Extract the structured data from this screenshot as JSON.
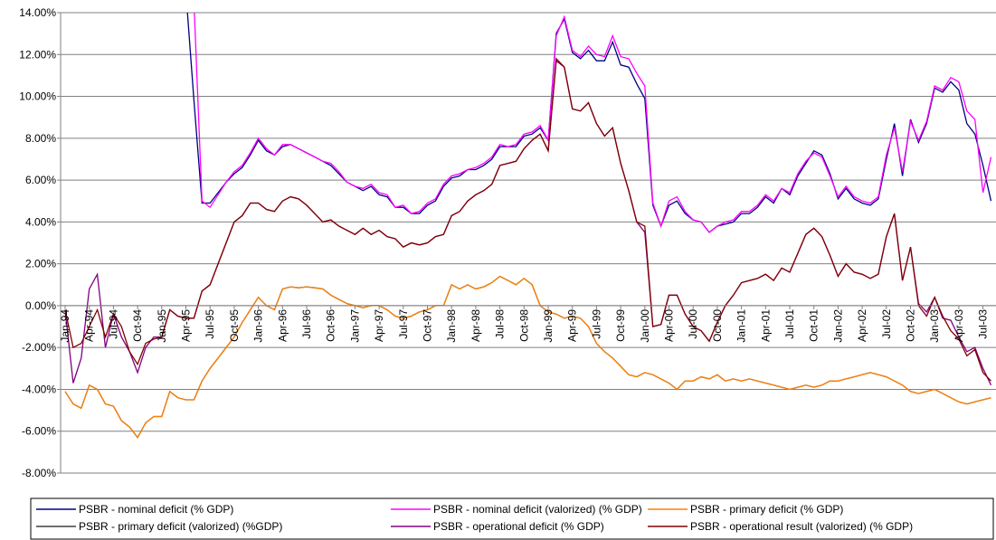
{
  "chart_data": {
    "type": "line",
    "categories": [
      "Jan-94",
      null,
      null,
      "Apr-94",
      null,
      null,
      "Jul-94",
      null,
      null,
      "Oct-94",
      null,
      null,
      "Jan-95",
      null,
      null,
      "Apr-95",
      null,
      null,
      "Jul-95",
      null,
      null,
      "Oct-95",
      null,
      null,
      "Jan-96",
      null,
      null,
      "Apr-96",
      null,
      null,
      "Jul-96",
      null,
      null,
      "Oct-96",
      null,
      null,
      "Jan-97",
      null,
      null,
      "Apr-97",
      null,
      null,
      "Jul-97",
      null,
      null,
      "Oct-97",
      null,
      null,
      "Jan-98",
      null,
      null,
      "Apr-98",
      null,
      null,
      "Jul-98",
      null,
      null,
      "Oct-98",
      null,
      null,
      "Jan-99",
      null,
      null,
      "Apr-99",
      null,
      null,
      "Jul-99",
      null,
      null,
      "Oct-99",
      null,
      null,
      "Jan-00",
      null,
      null,
      "Apr-00",
      null,
      null,
      "Jul-00",
      null,
      null,
      "Oct-00",
      null,
      null,
      "Jan-01",
      null,
      null,
      "Apr-01",
      null,
      null,
      "Jul-01",
      null,
      null,
      "Oct-01",
      null,
      null,
      "Jan-02",
      null,
      null,
      "Apr-02",
      null,
      null,
      "Jul-02",
      null,
      null,
      "Oct-02",
      null,
      null,
      "Jan-03",
      null,
      null,
      "Apr-03",
      null,
      null,
      "Jul-03",
      null
    ],
    "ylim": [
      -8,
      14
    ],
    "yticks": [
      {
        "value": -8,
        "label": "-8.00%"
      },
      {
        "value": -6,
        "label": "-6.00%"
      },
      {
        "value": -4,
        "label": "-4.00%"
      },
      {
        "value": -2,
        "label": "-2.00%"
      },
      {
        "value": 0,
        "label": "0.00%"
      },
      {
        "value": 2,
        "label": "2.00%"
      },
      {
        "value": 4,
        "label": "4.00%"
      },
      {
        "value": 6,
        "label": "6.00%"
      },
      {
        "value": 8,
        "label": "8.00%"
      },
      {
        "value": 10,
        "label": "10.00%"
      },
      {
        "value": 12,
        "label": "12.00%"
      },
      {
        "value": 14,
        "label": "14.00%"
      }
    ],
    "grid": true,
    "series": [
      {
        "name": "PSBR - nominal deficit (% GDP)",
        "color": "#000080",
        "values": [
          null,
          null,
          null,
          null,
          null,
          null,
          null,
          null,
          null,
          null,
          null,
          null,
          null,
          null,
          null,
          15,
          9.8,
          4.9,
          4.9,
          5.4,
          5.9,
          6.3,
          6.6,
          7.2,
          7.9,
          7.4,
          7.2,
          7.6,
          7.7,
          7.5,
          7.3,
          7.1,
          6.9,
          6.7,
          6.3,
          5.9,
          5.7,
          5.5,
          5.7,
          5.3,
          5.2,
          4.7,
          4.7,
          4.4,
          4.4,
          4.8,
          5.0,
          5.7,
          6.1,
          6.2,
          6.5,
          6.5,
          6.7,
          7.0,
          7.6,
          7.6,
          7.6,
          8.1,
          8.2,
          8.5,
          7.9,
          13.0,
          13.7,
          12.1,
          11.8,
          12.2,
          11.7,
          11.7,
          12.6,
          11.5,
          11.4,
          10.6,
          9.9,
          4.8,
          3.8,
          4.8,
          5.0,
          4.4,
          4.1,
          4.0,
          3.5,
          3.8,
          3.9,
          4.0,
          4.4,
          4.4,
          4.7,
          5.2,
          4.9,
          5.6,
          5.3,
          6.2,
          6.8,
          7.4,
          7.2,
          6.3,
          5.1,
          5.6,
          5.1,
          4.9,
          4.8,
          5.1,
          7.0,
          8.7,
          6.2,
          8.9,
          7.8,
          8.7,
          10.4,
          10.2,
          10.7,
          10.3,
          8.7,
          8.2,
          6.7,
          5.0
        ]
      },
      {
        "name": "PSBR - nominal deficit (valorized) (% GDP)",
        "color": "#ff00ff",
        "values": [
          null,
          null,
          null,
          null,
          null,
          null,
          null,
          null,
          null,
          null,
          null,
          null,
          null,
          null,
          null,
          null,
          14.5,
          5.0,
          4.7,
          5.3,
          5.9,
          6.4,
          6.7,
          7.3,
          8.0,
          7.5,
          7.2,
          7.7,
          7.7,
          7.5,
          7.3,
          7.1,
          6.9,
          6.8,
          6.4,
          5.9,
          5.7,
          5.6,
          5.8,
          5.4,
          5.3,
          4.7,
          4.8,
          4.4,
          4.5,
          4.9,
          5.1,
          5.8,
          6.2,
          6.3,
          6.5,
          6.6,
          6.8,
          7.1,
          7.7,
          7.6,
          7.7,
          8.2,
          8.3,
          8.6,
          7.9,
          12.9,
          13.8,
          12.2,
          11.9,
          12.4,
          12.0,
          11.9,
          12.9,
          11.9,
          11.8,
          11.1,
          10.5,
          4.9,
          3.8,
          5.0,
          5.2,
          4.5,
          4.1,
          4.0,
          3.5,
          3.8,
          4.0,
          4.1,
          4.5,
          4.5,
          4.8,
          5.3,
          5.0,
          5.6,
          5.4,
          6.3,
          6.9,
          7.3,
          7.1,
          6.2,
          5.2,
          5.7,
          5.2,
          5.0,
          4.9,
          5.2,
          7.2,
          8.5,
          6.4,
          8.8,
          7.9,
          8.8,
          10.5,
          10.3,
          10.9,
          10.7,
          9.3,
          8.9,
          5.4,
          7.1
        ]
      },
      {
        "name": "PSBR - primary deficit (% GDP)",
        "color": "#ff8000",
        "values": [
          -4.1,
          -4.7,
          -4.9,
          -3.8,
          -4.0,
          -4.7,
          -4.8,
          -5.5,
          -5.8,
          -6.3,
          -5.6,
          -5.3,
          -5.3,
          -4.1,
          -4.4,
          -4.5,
          -4.5,
          -3.6,
          -3.0,
          -2.5,
          -2.0,
          -1.5,
          -0.8,
          -0.2,
          0.4,
          0.0,
          -0.2,
          0.8,
          0.9,
          0.85,
          0.9,
          0.85,
          0.8,
          0.5,
          0.3,
          0.1,
          0.0,
          -0.1,
          0.0,
          0.0,
          -0.2,
          -0.5,
          -0.6,
          -0.5,
          -0.3,
          -0.2,
          0.0,
          0.0,
          1.0,
          0.8,
          1.0,
          0.8,
          0.9,
          1.1,
          1.4,
          1.2,
          1.0,
          1.3,
          1.0,
          0.0,
          -0.3,
          -0.4,
          -0.6,
          -0.5,
          -0.6,
          -1.0,
          -1.8,
          -2.2,
          -2.5,
          -2.9,
          -3.3,
          -3.4,
          -3.2,
          -3.3,
          -3.5,
          -3.7,
          -4.0,
          -3.6,
          -3.6,
          -3.4,
          -3.5,
          -3.3,
          -3.6,
          -3.5,
          -3.6,
          -3.5,
          -3.6,
          -3.7,
          -3.8,
          -3.9,
          -4.0,
          -3.9,
          -3.8,
          -3.9,
          -3.8,
          -3.6,
          -3.6,
          -3.5,
          -3.4,
          -3.3,
          -3.2,
          -3.3,
          -3.4,
          -3.6,
          -3.8,
          -4.1,
          -4.2,
          -4.1,
          -4.0,
          -4.2,
          -4.4,
          -4.6,
          -4.7,
          -4.6,
          -4.5,
          -4.4
        ]
      },
      {
        "name": "PSBR - primary deficit (valorized) (%GDP)",
        "color": "#404040",
        "values": [
          -4.1,
          -4.7,
          -4.9,
          -3.8,
          -4.0,
          -4.7,
          -4.8,
          -5.5,
          -5.8,
          -6.3,
          -5.6,
          -5.3,
          -5.3,
          -4.1,
          -4.4,
          -4.5,
          -4.5,
          -3.6,
          -3.0,
          -2.5,
          -2.0,
          -1.5,
          -0.8,
          -0.2,
          0.4,
          0.0,
          -0.2,
          0.8,
          0.9,
          0.85,
          0.9,
          0.85,
          0.8,
          0.5,
          0.3,
          0.1,
          0.0,
          -0.1,
          0.0,
          0.0,
          -0.2,
          -0.5,
          -0.6,
          -0.5,
          -0.3,
          -0.2,
          0.0,
          0.0,
          1.0,
          0.8,
          1.0,
          0.8,
          0.9,
          1.1,
          1.4,
          1.2,
          1.0,
          1.3,
          1.0,
          0.0,
          -0.3,
          -0.4,
          -0.6,
          -0.5,
          -0.6,
          -1.0,
          -1.8,
          -2.2,
          -2.5,
          -2.9,
          -3.3,
          -3.4,
          -3.2,
          -3.3,
          -3.5,
          -3.7,
          -4.0,
          -3.6,
          -3.6,
          -3.4,
          -3.5,
          -3.3,
          -3.6,
          -3.5,
          -3.6,
          -3.5,
          -3.6,
          -3.7,
          -3.8,
          -3.9,
          -4.0,
          -3.9,
          -3.8,
          -3.9,
          -3.8,
          -3.6,
          -3.6,
          -3.5,
          -3.4,
          -3.3,
          -3.2,
          -3.3,
          -3.4,
          -3.6,
          -3.8,
          -4.1,
          -4.2,
          -4.1,
          -4.0,
          -4.2,
          -4.4,
          -4.6,
          -4.7,
          -4.6,
          -4.5,
          -4.4
        ]
      },
      {
        "name": "PSBR - operational deficit (% GDP)",
        "color": "#800080",
        "values": [
          -0.2,
          -3.7,
          -2.5,
          0.8,
          1.5,
          -2.0,
          -0.4,
          -1.5,
          -2.2,
          -3.2,
          -2.0,
          -1.5,
          -1.5,
          -0.2,
          -0.5,
          -0.6,
          -0.6,
          0.7,
          1.0,
          2.0,
          3.0,
          4.0,
          4.3,
          4.9,
          4.9,
          4.6,
          4.5,
          5.0,
          5.2,
          5.1,
          4.8,
          4.4,
          4.0,
          4.1,
          3.8,
          3.6,
          3.4,
          3.7,
          3.4,
          3.6,
          3.3,
          3.2,
          2.8,
          3.0,
          2.9,
          3.0,
          3.3,
          3.4,
          4.3,
          4.5,
          5.0,
          5.3,
          5.5,
          5.8,
          6.7,
          6.8,
          6.9,
          7.5,
          7.9,
          8.2,
          7.4,
          11.7,
          11.4,
          9.4,
          9.3,
          9.7,
          8.7,
          8.1,
          8.5,
          6.8,
          5.5,
          4.0,
          3.5,
          -1.0,
          -0.9,
          0.5,
          0.5,
          -0.4,
          -1.0,
          -1.2,
          -1.7,
          -0.8,
          0.0,
          0.5,
          1.1,
          1.2,
          1.3,
          1.5,
          1.2,
          1.8,
          1.6,
          2.5,
          3.4,
          3.7,
          3.3,
          2.4,
          1.4,
          2.0,
          1.6,
          1.5,
          1.3,
          1.5,
          3.3,
          4.4,
          1.2,
          2.8,
          0.1,
          -0.3,
          0.4,
          -0.6,
          -0.7,
          -1.5,
          -2.2,
          -2.0,
          -3.0,
          -3.8
        ]
      },
      {
        "name": "PSBR - operational result (valorized) (% GDP)",
        "color": "#800000",
        "values": [
          -0.2,
          -2.0,
          -1.8,
          -1.0,
          -0.2,
          -1.5,
          -0.4,
          -1.0,
          -2.2,
          -2.8,
          -1.8,
          -1.6,
          -1.5,
          -0.2,
          -0.5,
          -0.6,
          -0.6,
          0.7,
          1.0,
          2.0,
          3.0,
          4.0,
          4.3,
          4.9,
          4.9,
          4.6,
          4.5,
          5.0,
          5.2,
          5.1,
          4.8,
          4.4,
          4.0,
          4.1,
          3.8,
          3.6,
          3.4,
          3.7,
          3.4,
          3.6,
          3.3,
          3.2,
          2.8,
          3.0,
          2.9,
          3.0,
          3.3,
          3.4,
          4.3,
          4.5,
          5.0,
          5.3,
          5.5,
          5.8,
          6.7,
          6.8,
          6.9,
          7.5,
          7.9,
          8.2,
          7.4,
          11.8,
          11.4,
          9.4,
          9.3,
          9.7,
          8.7,
          8.1,
          8.5,
          6.8,
          5.5,
          4.0,
          3.8,
          -1.0,
          -0.9,
          0.5,
          0.5,
          -0.4,
          -1.0,
          -1.2,
          -1.7,
          -0.8,
          0.0,
          0.5,
          1.1,
          1.2,
          1.3,
          1.5,
          1.2,
          1.8,
          1.6,
          2.5,
          3.4,
          3.7,
          3.3,
          2.4,
          1.4,
          2.0,
          1.6,
          1.5,
          1.3,
          1.5,
          3.3,
          4.4,
          1.2,
          2.8,
          0.0,
          -0.5,
          0.4,
          -0.5,
          -1.2,
          -1.6,
          -2.4,
          -2.1,
          -3.2,
          -3.6
        ]
      }
    ]
  }
}
